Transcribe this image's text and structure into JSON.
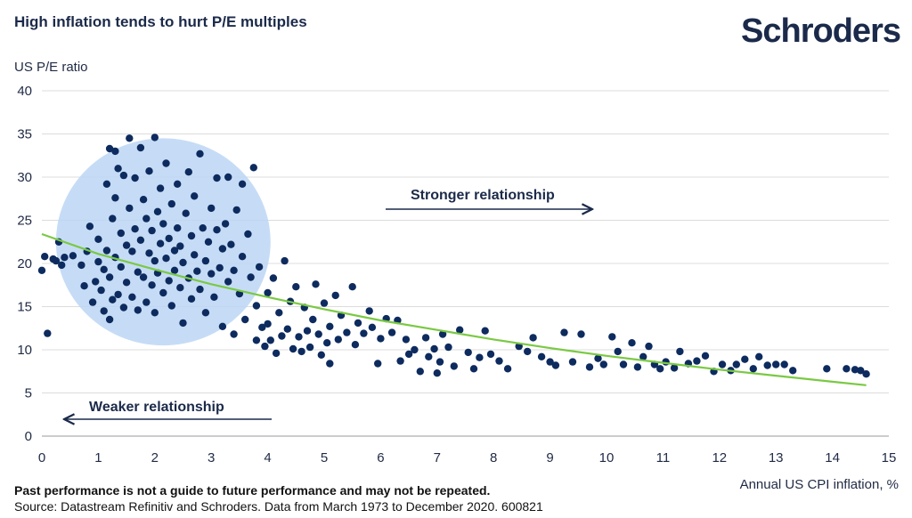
{
  "header": {
    "title": "High inflation tends to hurt P/E multiples",
    "logo": "Schroders"
  },
  "footer": {
    "disclaimer": "Past performance is not a guide to future performance and may not be repeated.",
    "source": "Source: Datastream Refinitiv and Schroders. Data from March 1973 to December 2020. 600821"
  },
  "colors": {
    "points": "#0d2b5e",
    "trend": "#7ac943",
    "cluster": "#bcd6f5",
    "text": "#1b2a4a"
  },
  "chart_data": {
    "type": "scatter",
    "title": "High inflation tends to hurt P/E multiples",
    "xlabel": "Annual US CPI inflation, %",
    "ylabel": "US P/E ratio",
    "xlim": [
      0,
      15
    ],
    "ylim": [
      0,
      40
    ],
    "xticks": [
      "0",
      "1",
      "2",
      "3",
      "4",
      "5",
      "6",
      "7",
      "8",
      "9",
      "10",
      "11",
      "12",
      "13",
      "14",
      "15"
    ],
    "yticks": [
      "0",
      "5",
      "10",
      "15",
      "20",
      "25",
      "30",
      "35",
      "40"
    ],
    "grid": "horizontal",
    "annotations": [
      {
        "text": "Stronger relationship",
        "arrow": "right"
      },
      {
        "text": "Weaker relationship",
        "arrow": "left"
      }
    ],
    "cluster_highlight": {
      "cx": 2.15,
      "cy": 22.5,
      "rx": 1.9,
      "ry": 12.0
    },
    "trendline": [
      [
        0,
        23.4
      ],
      [
        1,
        21.1
      ],
      [
        2,
        19.3
      ],
      [
        3,
        17.6
      ],
      [
        4,
        16.1
      ],
      [
        5,
        14.7
      ],
      [
        6,
        13.4
      ],
      [
        7,
        12.3
      ],
      [
        8,
        11.2
      ],
      [
        9,
        10.2
      ],
      [
        10,
        9.3
      ],
      [
        11,
        8.5
      ],
      [
        12,
        7.7
      ],
      [
        13,
        7.0
      ],
      [
        14,
        6.3
      ],
      [
        14.6,
        5.9
      ]
    ],
    "points": [
      [
        0.0,
        19.2
      ],
      [
        0.05,
        20.8
      ],
      [
        0.1,
        11.9
      ],
      [
        0.2,
        20.5
      ],
      [
        0.25,
        20.3
      ],
      [
        0.3,
        22.5
      ],
      [
        0.35,
        19.8
      ],
      [
        0.4,
        20.7
      ],
      [
        0.55,
        20.9
      ],
      [
        0.7,
        19.8
      ],
      [
        0.75,
        17.4
      ],
      [
        0.8,
        21.4
      ],
      [
        0.85,
        24.3
      ],
      [
        0.9,
        15.5
      ],
      [
        0.95,
        17.9
      ],
      [
        1.0,
        20.2
      ],
      [
        1.0,
        22.8
      ],
      [
        1.05,
        16.9
      ],
      [
        1.1,
        19.3
      ],
      [
        1.1,
        14.5
      ],
      [
        1.15,
        29.2
      ],
      [
        1.15,
        21.5
      ],
      [
        1.2,
        33.3
      ],
      [
        1.2,
        18.4
      ],
      [
        1.2,
        13.5
      ],
      [
        1.25,
        25.2
      ],
      [
        1.25,
        15.8
      ],
      [
        1.3,
        33.0
      ],
      [
        1.3,
        27.6
      ],
      [
        1.3,
        20.7
      ],
      [
        1.35,
        16.4
      ],
      [
        1.35,
        31.0
      ],
      [
        1.4,
        23.5
      ],
      [
        1.4,
        19.6
      ],
      [
        1.45,
        30.2
      ],
      [
        1.45,
        14.9
      ],
      [
        1.5,
        22.1
      ],
      [
        1.5,
        17.8
      ],
      [
        1.55,
        34.5
      ],
      [
        1.55,
        26.4
      ],
      [
        1.6,
        21.4
      ],
      [
        1.6,
        16.1
      ],
      [
        1.65,
        29.9
      ],
      [
        1.65,
        24.0
      ],
      [
        1.7,
        19.0
      ],
      [
        1.7,
        14.6
      ],
      [
        1.75,
        33.4
      ],
      [
        1.75,
        22.7
      ],
      [
        1.8,
        27.4
      ],
      [
        1.8,
        18.4
      ],
      [
        1.85,
        15.5
      ],
      [
        1.85,
        25.2
      ],
      [
        1.9,
        21.2
      ],
      [
        1.9,
        30.7
      ],
      [
        1.95,
        17.5
      ],
      [
        1.95,
        23.8
      ],
      [
        2.0,
        34.6
      ],
      [
        2.0,
        20.3
      ],
      [
        2.0,
        14.3
      ],
      [
        2.05,
        26.0
      ],
      [
        2.05,
        18.9
      ],
      [
        2.1,
        22.3
      ],
      [
        2.1,
        28.7
      ],
      [
        2.15,
        16.6
      ],
      [
        2.15,
        24.6
      ],
      [
        2.2,
        20.6
      ],
      [
        2.2,
        31.6
      ],
      [
        2.25,
        18.0
      ],
      [
        2.25,
        22.9
      ],
      [
        2.3,
        26.9
      ],
      [
        2.3,
        15.1
      ],
      [
        2.35,
        21.5
      ],
      [
        2.35,
        19.2
      ],
      [
        2.4,
        24.1
      ],
      [
        2.4,
        29.2
      ],
      [
        2.45,
        17.2
      ],
      [
        2.45,
        22.0
      ],
      [
        2.5,
        20.1
      ],
      [
        2.5,
        13.1
      ],
      [
        2.55,
        25.8
      ],
      [
        2.6,
        18.3
      ],
      [
        2.6,
        30.6
      ],
      [
        2.65,
        23.2
      ],
      [
        2.65,
        15.9
      ],
      [
        2.7,
        21.0
      ],
      [
        2.7,
        27.8
      ],
      [
        2.75,
        19.1
      ],
      [
        2.8,
        32.7
      ],
      [
        2.8,
        17.0
      ],
      [
        2.85,
        24.1
      ],
      [
        2.9,
        20.3
      ],
      [
        2.9,
        14.3
      ],
      [
        2.95,
        22.5
      ],
      [
        3.0,
        18.8
      ],
      [
        3.0,
        26.4
      ],
      [
        3.05,
        16.1
      ],
      [
        3.1,
        23.9
      ],
      [
        3.1,
        29.9
      ],
      [
        3.15,
        19.5
      ],
      [
        3.2,
        21.7
      ],
      [
        3.2,
        12.7
      ],
      [
        3.25,
        24.6
      ],
      [
        3.3,
        17.9
      ],
      [
        3.3,
        30.0
      ],
      [
        3.35,
        22.2
      ],
      [
        3.4,
        19.2
      ],
      [
        3.4,
        11.8
      ],
      [
        3.45,
        26.2
      ],
      [
        3.5,
        16.5
      ],
      [
        3.55,
        29.2
      ],
      [
        3.55,
        20.8
      ],
      [
        3.6,
        13.5
      ],
      [
        3.65,
        23.4
      ],
      [
        3.7,
        18.4
      ],
      [
        3.75,
        31.1
      ],
      [
        3.8,
        11.1
      ],
      [
        3.8,
        15.1
      ],
      [
        3.85,
        19.6
      ],
      [
        3.9,
        12.6
      ],
      [
        3.95,
        10.4
      ],
      [
        4.0,
        16.6
      ],
      [
        4.0,
        13.0
      ],
      [
        4.05,
        11.1
      ],
      [
        4.1,
        18.3
      ],
      [
        4.15,
        9.6
      ],
      [
        4.2,
        14.3
      ],
      [
        4.25,
        11.6
      ],
      [
        4.3,
        20.3
      ],
      [
        4.35,
        12.4
      ],
      [
        4.4,
        15.6
      ],
      [
        4.45,
        10.1
      ],
      [
        4.5,
        17.3
      ],
      [
        4.55,
        11.5
      ],
      [
        4.6,
        9.8
      ],
      [
        4.65,
        14.9
      ],
      [
        4.7,
        12.2
      ],
      [
        4.75,
        10.3
      ],
      [
        4.8,
        13.5
      ],
      [
        4.85,
        17.6
      ],
      [
        4.9,
        11.8
      ],
      [
        4.95,
        9.4
      ],
      [
        5.0,
        15.4
      ],
      [
        5.05,
        10.8
      ],
      [
        5.1,
        12.7
      ],
      [
        5.1,
        8.4
      ],
      [
        5.2,
        16.3
      ],
      [
        5.25,
        11.2
      ],
      [
        5.3,
        14.0
      ],
      [
        5.4,
        12.0
      ],
      [
        5.5,
        17.3
      ],
      [
        5.55,
        10.6
      ],
      [
        5.6,
        13.1
      ],
      [
        5.7,
        11.9
      ],
      [
        5.8,
        14.5
      ],
      [
        5.85,
        12.6
      ],
      [
        5.95,
        8.4
      ],
      [
        6.0,
        11.3
      ],
      [
        6.1,
        13.6
      ],
      [
        6.2,
        12.0
      ],
      [
        6.3,
        13.4
      ],
      [
        6.35,
        8.7
      ],
      [
        6.45,
        11.2
      ],
      [
        6.5,
        9.5
      ],
      [
        6.6,
        10.0
      ],
      [
        6.7,
        7.5
      ],
      [
        6.8,
        11.4
      ],
      [
        6.85,
        9.2
      ],
      [
        6.95,
        10.1
      ],
      [
        7.0,
        7.3
      ],
      [
        7.05,
        8.6
      ],
      [
        7.1,
        11.8
      ],
      [
        7.2,
        10.3
      ],
      [
        7.3,
        8.1
      ],
      [
        7.4,
        12.3
      ],
      [
        7.55,
        9.7
      ],
      [
        7.65,
        7.8
      ],
      [
        7.75,
        9.1
      ],
      [
        7.85,
        12.2
      ],
      [
        7.95,
        9.5
      ],
      [
        8.1,
        8.7
      ],
      [
        8.25,
        7.8
      ],
      [
        8.45,
        10.4
      ],
      [
        8.6,
        9.8
      ],
      [
        8.7,
        11.4
      ],
      [
        8.85,
        9.2
      ],
      [
        9.0,
        8.6
      ],
      [
        9.1,
        8.2
      ],
      [
        9.25,
        12.0
      ],
      [
        9.4,
        8.6
      ],
      [
        9.55,
        11.8
      ],
      [
        9.7,
        8.0
      ],
      [
        9.85,
        9.0
      ],
      [
        9.95,
        8.3
      ],
      [
        10.1,
        11.5
      ],
      [
        10.2,
        9.8
      ],
      [
        10.3,
        8.3
      ],
      [
        10.45,
        10.8
      ],
      [
        10.55,
        8.0
      ],
      [
        10.65,
        9.2
      ],
      [
        10.75,
        10.4
      ],
      [
        10.85,
        8.3
      ],
      [
        10.95,
        7.8
      ],
      [
        11.05,
        8.6
      ],
      [
        11.2,
        7.9
      ],
      [
        11.3,
        9.8
      ],
      [
        11.45,
        8.4
      ],
      [
        11.6,
        8.7
      ],
      [
        11.75,
        9.3
      ],
      [
        11.9,
        7.5
      ],
      [
        12.05,
        8.3
      ],
      [
        12.2,
        7.6
      ],
      [
        12.3,
        8.3
      ],
      [
        12.45,
        8.9
      ],
      [
        12.6,
        7.8
      ],
      [
        12.7,
        9.2
      ],
      [
        12.85,
        8.2
      ],
      [
        13.0,
        8.3
      ],
      [
        13.15,
        8.3
      ],
      [
        13.3,
        7.6
      ],
      [
        13.9,
        7.8
      ],
      [
        14.25,
        7.8
      ],
      [
        14.4,
        7.7
      ],
      [
        14.5,
        7.6
      ],
      [
        14.6,
        7.2
      ]
    ]
  }
}
